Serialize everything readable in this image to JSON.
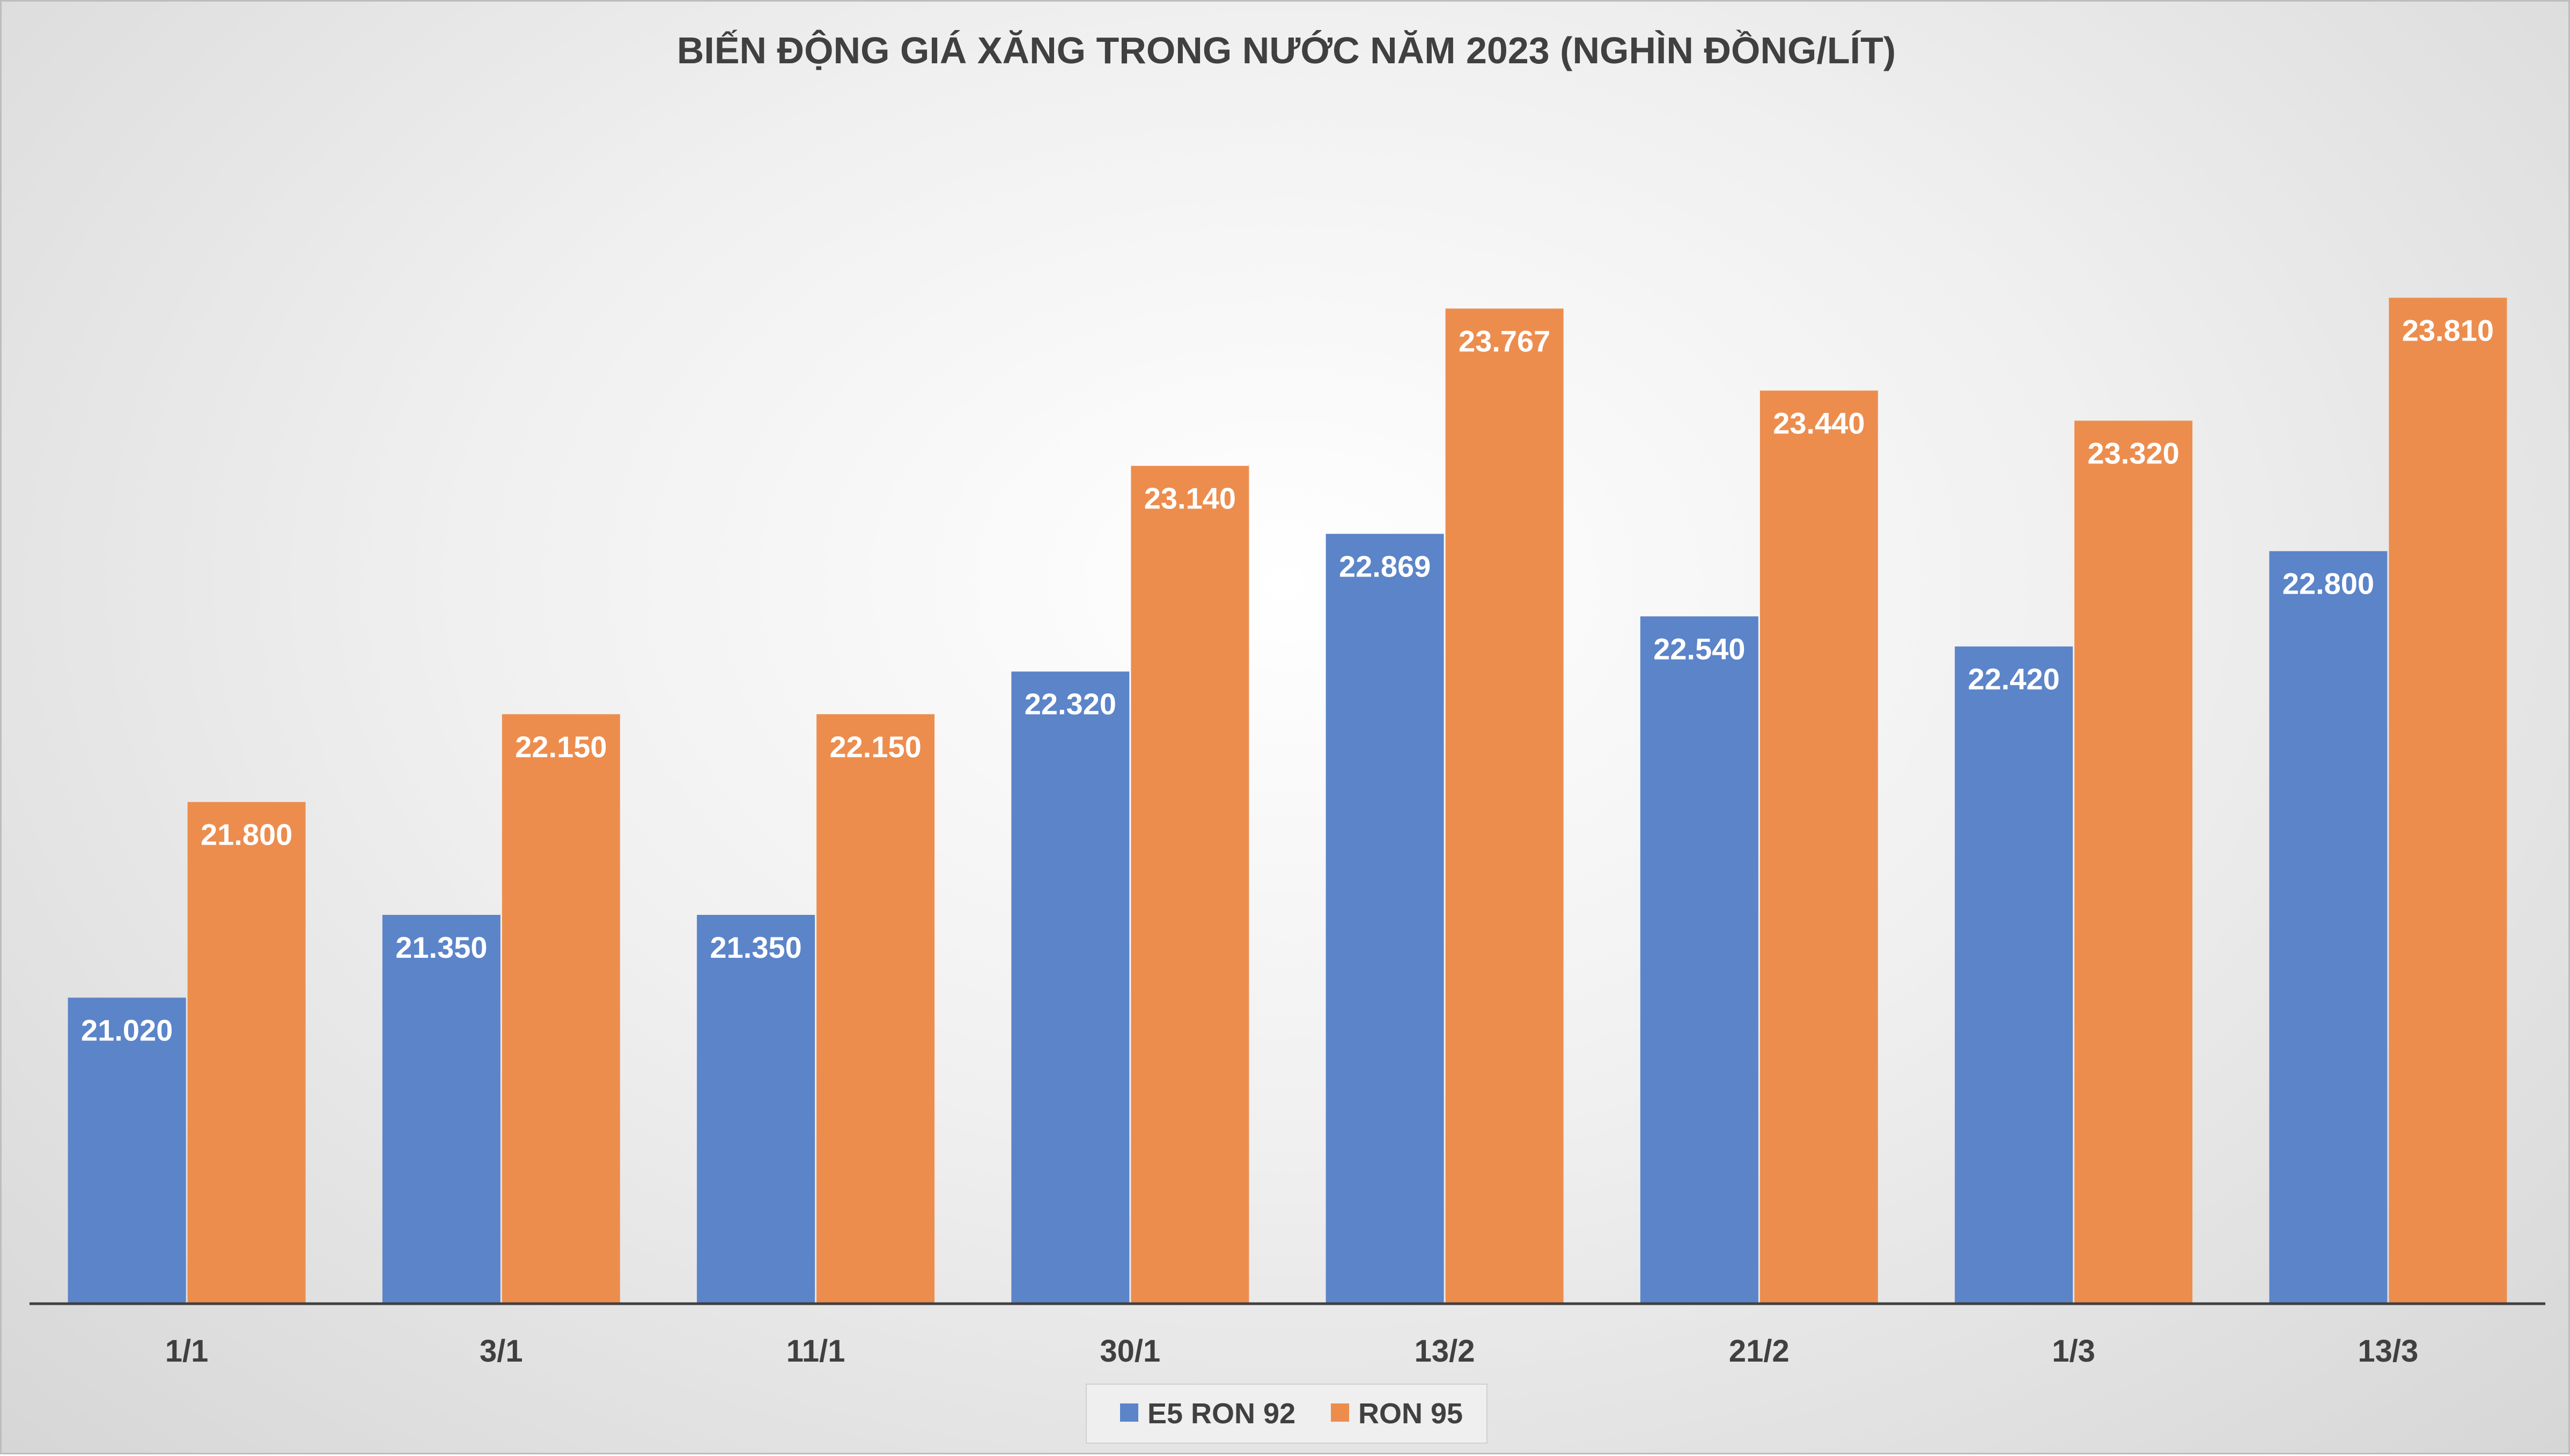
{
  "chart_data": {
    "type": "bar",
    "title": "BIẾN ĐỘNG GIÁ XĂNG TRONG NƯỚC NĂM 2023 (NGHÌN ĐỒNG/LÍT)",
    "categories": [
      "1/1",
      "3/1",
      "11/1",
      "30/1",
      "13/2",
      "21/2",
      "1/3",
      "13/3"
    ],
    "series": [
      {
        "name": "E5 RON 92",
        "color": "#5B84C9",
        "values": [
          21020,
          21350,
          21350,
          22320,
          22869,
          22540,
          22420,
          22800
        ],
        "labels": [
          "21.020",
          "21.350",
          "21.350",
          "22.320",
          "22.869",
          "22.540",
          "22.420",
          "22.800"
        ]
      },
      {
        "name": "RON 95",
        "color": "#EC8D4E",
        "values": [
          21800,
          22150,
          22150,
          23140,
          23767,
          23440,
          23320,
          23810
        ],
        "labels": [
          "21.800",
          "22.150",
          "22.150",
          "23.140",
          "23.767",
          "23.440",
          "23.320",
          "23.810"
        ]
      }
    ],
    "ylim": [
      19800,
      24050
    ],
    "xlabel": "",
    "ylabel": "",
    "grid": false,
    "legend_position": "bottom"
  }
}
